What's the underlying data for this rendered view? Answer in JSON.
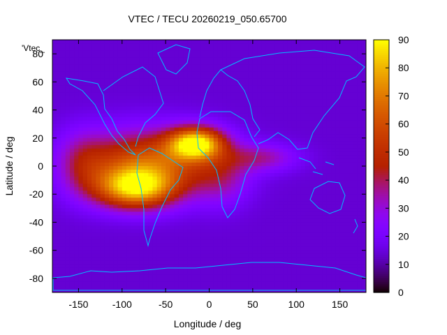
{
  "chart_data": {
    "type": "heatmap",
    "title": "VTEC / TECU 20260219_050.65700",
    "series_key_label": "'Vtec_",
    "xlabel": "Longitude / deg",
    "ylabel": "Latitude / deg",
    "xlim": [
      -180,
      180
    ],
    "ylim": [
      -90,
      90
    ],
    "xticks": [
      -150,
      -100,
      -50,
      0,
      50,
      100,
      150
    ],
    "yticks": [
      -80,
      -60,
      -40,
      -20,
      0,
      20,
      40,
      60,
      80
    ],
    "x_tick_labels": [
      "-150",
      "-100",
      "-50",
      "0",
      "50",
      "100",
      "150"
    ],
    "y_tick_labels": [
      "-80",
      "-60",
      "-40",
      "-20",
      "0",
      "20",
      "40",
      "60",
      "80"
    ],
    "colorbar": {
      "range": [
        0,
        90
      ],
      "ticks": [
        0,
        10,
        20,
        30,
        40,
        50,
        60,
        70,
        80,
        90
      ],
      "tick_labels": [
        "0",
        "10",
        "20",
        "30",
        "40",
        "50",
        "60",
        "70",
        "80",
        "90"
      ],
      "colormap": "gnuplot-pm3d (black-purple-red-orange-yellow)"
    },
    "background_vtec_tecu": 14,
    "ionospheric_features": [
      {
        "name": "anomaly-north-atlantic",
        "lon": -15,
        "lat": 16,
        "peak": 82,
        "sigma_lon": 22,
        "sigma_lat": 8
      },
      {
        "name": "anomaly-south-america",
        "lon": -85,
        "lat": -16,
        "peak": 72,
        "sigma_lon": 32,
        "sigma_lat": 10
      },
      {
        "name": "equatorial-band-west",
        "lon": -70,
        "lat": 2,
        "peak": 62,
        "sigma_lon": 52,
        "sigma_lat": 16
      },
      {
        "name": "africa-south-tail",
        "lon": 15,
        "lat": -8,
        "peak": 30,
        "sigma_lon": 22,
        "sigma_lat": 14
      },
      {
        "name": "indian-ocean-tail",
        "lon": 60,
        "lat": 6,
        "peak": 34,
        "sigma_lon": 28,
        "sigma_lat": 7
      },
      {
        "name": "pacific-west-tail",
        "lon": -145,
        "lat": 2,
        "peak": 30,
        "sigma_lon": 20,
        "sigma_lat": 16
      }
    ],
    "grid": false,
    "coastlines": true
  }
}
